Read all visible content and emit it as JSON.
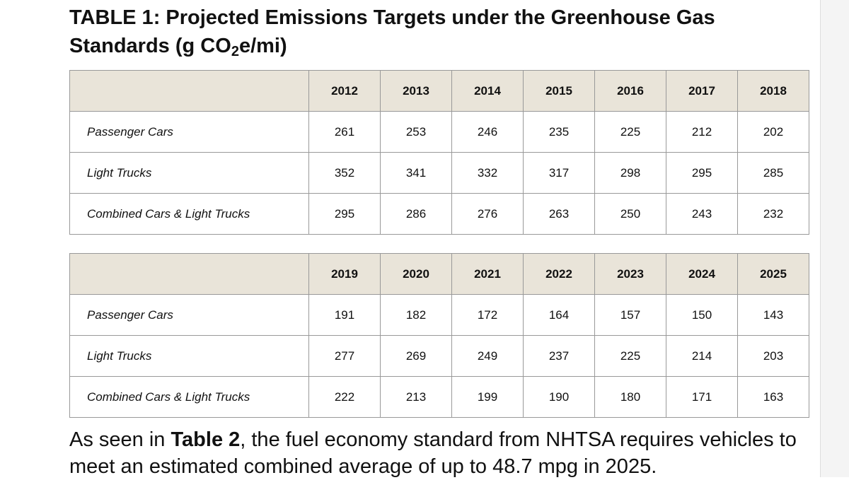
{
  "title": {
    "main": "TABLE 1: Projected Emissions Targets under the Greenhouse Gas Standards (g CO",
    "sub": "2",
    "tail": "e/mi)"
  },
  "tables": [
    {
      "years": [
        "2012",
        "2013",
        "2014",
        "2015",
        "2016",
        "2017",
        "2018"
      ],
      "rows": [
        {
          "label": "Passenger Cars",
          "values": [
            "261",
            "253",
            "246",
            "235",
            "225",
            "212",
            "202"
          ]
        },
        {
          "label": "Light Trucks",
          "values": [
            "352",
            "341",
            "332",
            "317",
            "298",
            "295",
            "285"
          ]
        },
        {
          "label": "Combined Cars & Light Trucks",
          "values": [
            "295",
            "286",
            "276",
            "263",
            "250",
            "243",
            "232"
          ]
        }
      ]
    },
    {
      "years": [
        "2019",
        "2020",
        "2021",
        "2022",
        "2023",
        "2024",
        "2025"
      ],
      "rows": [
        {
          "label": "Passenger Cars",
          "values": [
            "191",
            "182",
            "172",
            "164",
            "157",
            "150",
            "143"
          ]
        },
        {
          "label": "Light Trucks",
          "values": [
            "277",
            "269",
            "249",
            "237",
            "225",
            "214",
            "203"
          ]
        },
        {
          "label": "Combined Cars & Light Trucks",
          "values": [
            "222",
            "213",
            "199",
            "190",
            "180",
            "171",
            "163"
          ]
        }
      ]
    }
  ],
  "paragraph": {
    "prefix": "As seen in ",
    "bold": "Table 2",
    "suffix": ", the fuel economy standard from NHTSA requires vehicles to meet an estimated combined average of up to 48.7 mpg in 2025."
  }
}
